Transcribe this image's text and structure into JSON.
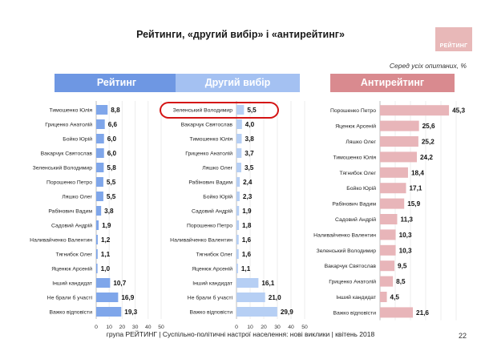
{
  "title": "Рейтинги, «другий вибір» і «антирейтинг»",
  "logo_text": "РЕЙТИНГ",
  "subtitle": "Серед усіх опитаних, %",
  "footer": "група РЕЙТИНГ  |  Суспільно-політичні настрої населення: нові виклики  |  квітень 2018",
  "page_number": "22",
  "colors": {
    "rating_header": "#6e97e3",
    "rating_bar": "#7fa6ea",
    "second_header": "#a4c1f2",
    "second_bar": "#b6cff4",
    "anti_header": "#d98a8f",
    "anti_bar": "#e8b5b9",
    "highlight": "#d41414"
  },
  "chart_data": [
    {
      "type": "bar",
      "orientation": "horizontal",
      "title": "Рейтинг",
      "xlim": [
        0,
        50
      ],
      "xticks": [
        0,
        10,
        20,
        30,
        40,
        50
      ],
      "categories": [
        "Тимошенко Юлія",
        "Гриценко Анатолій",
        "Бойко Юрій",
        "Вакарчук Святослав",
        "Зеленський Володимир",
        "Порошенко Петро",
        "Ляшко Олег",
        "Рабінович Вадим",
        "Садовий Андрій",
        "Наливайченко Валентин",
        "Тягнибок Олег",
        "Яценюк Арсеній",
        "Інший кандидат",
        "Не брали б участі",
        "Важко відповісти"
      ],
      "values": [
        8.8,
        6.6,
        6.0,
        6.0,
        5.8,
        5.5,
        5.5,
        3.8,
        1.9,
        1.2,
        1.1,
        1.0,
        10.7,
        16.9,
        19.3
      ],
      "value_labels": [
        "8,8",
        "6,6",
        "6,0",
        "6,0",
        "5,8",
        "5,5",
        "5,5",
        "3,8",
        "1,9",
        "1,2",
        "1,1",
        "1,0",
        "10,7",
        "16,9",
        "19,3"
      ],
      "grid": true
    },
    {
      "type": "bar",
      "orientation": "horizontal",
      "title": "Другий вибір",
      "xlim": [
        0,
        50
      ],
      "xticks": [
        0,
        10,
        20,
        30,
        40,
        50
      ],
      "categories": [
        "Зеленський Володимир",
        "Вакарчук Святослав",
        "Тимошенко Юлія",
        "Гриценко Анатолій",
        "Ляшко Олег",
        "Рабінович Вадим",
        "Бойко Юрій",
        "Садовий Андрій",
        "Порошенко Петро",
        "Наливайченко Валентин",
        "Тягнибок Олег",
        "Яценюк Арсеній",
        "Інший кандидат",
        "Не брали б участі",
        "Важко відповісти"
      ],
      "values": [
        5.5,
        4.0,
        3.8,
        3.7,
        3.5,
        2.4,
        2.3,
        1.9,
        1.8,
        1.6,
        1.6,
        1.1,
        16.1,
        21.0,
        29.9
      ],
      "value_labels": [
        "5,5",
        "4,0",
        "3,8",
        "3,7",
        "3,5",
        "2,4",
        "2,3",
        "1,9",
        "1,8",
        "1,6",
        "1,6",
        "1,1",
        "16,1",
        "21,0",
        "29,9"
      ],
      "highlighted_category": "Зеленський Володимир",
      "grid": true
    },
    {
      "type": "bar",
      "orientation": "horizontal",
      "title": "Антирейтинг",
      "xlim": [
        0,
        50
      ],
      "xticks": [],
      "categories": [
        "Порошенко Петро",
        "Яценюк Арсеній",
        "Ляшко Олег",
        "Тимошенко Юлія",
        "Тягнибок Олег",
        "Бойко Юрій",
        "Рабінович Вадим",
        "Садовий Андрій",
        "Наливайченко Валентин",
        "Зеленський Володимир",
        "Вакарчук Святослав",
        "Гриценко Анатолій",
        "Інший кандидат",
        "Важко відповісти"
      ],
      "values": [
        45.3,
        25.6,
        25.2,
        24.2,
        18.4,
        17.1,
        15.9,
        11.3,
        10.3,
        10.3,
        9.5,
        8.5,
        4.5,
        21.6
      ],
      "value_labels": [
        "45,3",
        "25,6",
        "25,2",
        "24,2",
        "18,4",
        "17,1",
        "15,9",
        "11,3",
        "10,3",
        "10,3",
        "9,5",
        "8,5",
        "4,5",
        "21,6"
      ],
      "grid": true
    }
  ]
}
